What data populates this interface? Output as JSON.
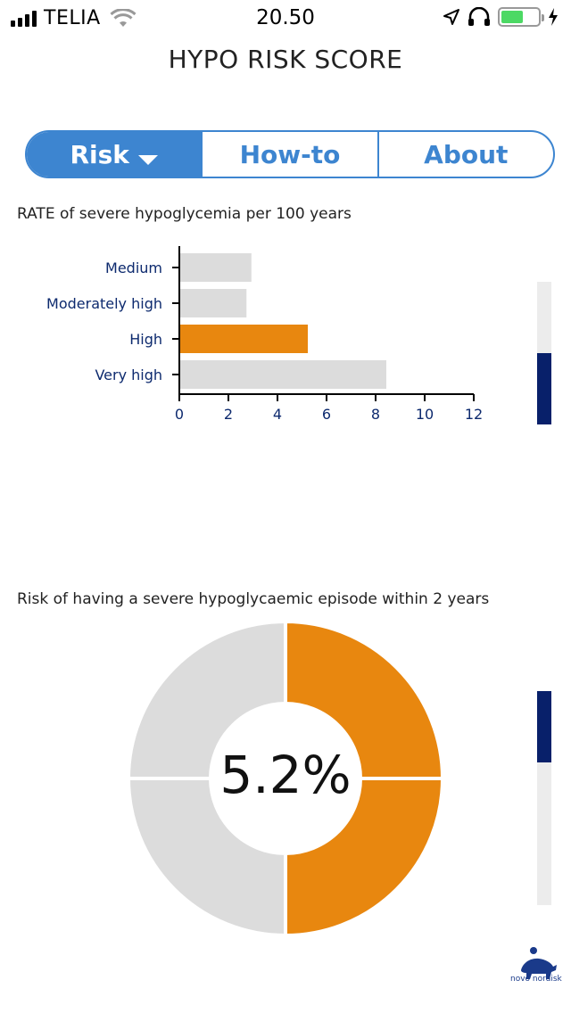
{
  "status_bar": {
    "carrier": "TELIA",
    "time": "20.50",
    "battery_level": 0.6,
    "battery_color": "#4cd964"
  },
  "header": {
    "title": "HYPO RISK SCORE"
  },
  "tabs": [
    {
      "label": "Risk",
      "active": true
    },
    {
      "label": "How-to",
      "active": false
    },
    {
      "label": "About",
      "active": false
    }
  ],
  "accent_color": "#3d85d0",
  "rate_section": {
    "heading": "RATE of severe hypoglycemia per 100 years",
    "scroll_position": "bottom"
  },
  "risk_section": {
    "heading": "Risk of having a severe hypoglycaemic episode within 2 years",
    "percent_label": "5.2%",
    "scroll_position": "top"
  },
  "brand": {
    "logo_text": "novo nordisk",
    "icon": "apis-bull-logo"
  },
  "chart_data": [
    {
      "type": "bar",
      "orientation": "horizontal",
      "title": "RATE of severe hypoglycemia per 100 years",
      "categories": [
        "Medium",
        "Moderately high",
        "High",
        "Very high"
      ],
      "values": [
        2.9,
        2.7,
        5.2,
        8.4
      ],
      "highlight_index": 2,
      "highlight_color": "#e8870f",
      "base_color": "#dcdcdc",
      "xlim": [
        0,
        12
      ],
      "xticks": [
        0,
        2,
        4,
        6,
        8,
        10,
        12
      ],
      "grid": false
    },
    {
      "type": "pie",
      "style": "donut",
      "title": "Risk of having a severe hypoglycaemic episode within 2 years",
      "center_label": "5.2%",
      "segments": [
        {
          "value": 1,
          "color": "#e8870f"
        },
        {
          "value": 1,
          "color": "#e8870f"
        },
        {
          "value": 1,
          "color": "#dcdcdc"
        },
        {
          "value": 1,
          "color": "#dcdcdc"
        }
      ]
    }
  ]
}
